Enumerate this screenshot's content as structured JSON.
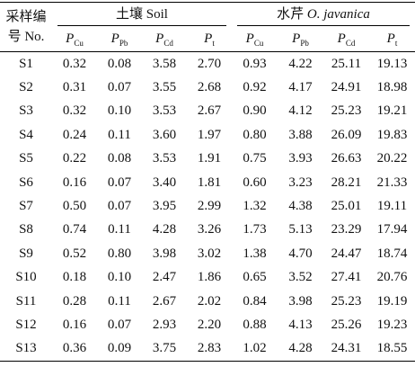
{
  "header": {
    "id_label": "采样编号 No.",
    "soil": "土壤 Soil",
    "plant": "水芹",
    "plant_latin": "O. javanica",
    "columns": [
      {
        "main": "P",
        "sub": "Cu"
      },
      {
        "main": "P",
        "sub": "Pb"
      },
      {
        "main": "P",
        "sub": "Cd"
      },
      {
        "main": "P",
        "sub": "t"
      },
      {
        "main": "P",
        "sub": "Cu"
      },
      {
        "main": "P",
        "sub": "Pb"
      },
      {
        "main": "P",
        "sub": "Cd"
      },
      {
        "main": "P",
        "sub": "t"
      }
    ]
  },
  "table": {
    "rows": [
      [
        "S1",
        "0.32",
        "0.08",
        "3.58",
        "2.70",
        "0.93",
        "4.22",
        "25.11",
        "19.13"
      ],
      [
        "S2",
        "0.31",
        "0.07",
        "3.55",
        "2.68",
        "0.92",
        "4.17",
        "24.91",
        "18.98"
      ],
      [
        "S3",
        "0.32",
        "0.10",
        "3.53",
        "2.67",
        "0.90",
        "4.12",
        "25.23",
        "19.21"
      ],
      [
        "S4",
        "0.24",
        "0.11",
        "3.60",
        "1.97",
        "0.80",
        "3.88",
        "26.09",
        "19.83"
      ],
      [
        "S5",
        "0.22",
        "0.08",
        "3.53",
        "1.91",
        "0.75",
        "3.93",
        "26.63",
        "20.22"
      ],
      [
        "S6",
        "0.16",
        "0.07",
        "3.40",
        "1.81",
        "0.60",
        "3.23",
        "28.21",
        "21.33"
      ],
      [
        "S7",
        "0.50",
        "0.07",
        "3.95",
        "2.99",
        "1.32",
        "4.38",
        "25.01",
        "19.11"
      ],
      [
        "S8",
        "0.74",
        "0.11",
        "4.28",
        "3.26",
        "1.73",
        "5.13",
        "23.29",
        "17.94"
      ],
      [
        "S9",
        "0.52",
        "0.80",
        "3.98",
        "3.02",
        "1.38",
        "4.70",
        "24.47",
        "18.74"
      ],
      [
        "S10",
        "0.18",
        "0.10",
        "2.47",
        "1.86",
        "0.65",
        "3.52",
        "27.41",
        "20.76"
      ],
      [
        "S11",
        "0.28",
        "0.11",
        "2.67",
        "2.02",
        "0.84",
        "3.98",
        "25.23",
        "19.19"
      ],
      [
        "S12",
        "0.16",
        "0.07",
        "2.93",
        "2.20",
        "0.88",
        "4.13",
        "25.26",
        "19.23"
      ],
      [
        "S13",
        "0.36",
        "0.09",
        "3.75",
        "2.83",
        "1.02",
        "4.28",
        "24.31",
        "18.55"
      ]
    ]
  }
}
